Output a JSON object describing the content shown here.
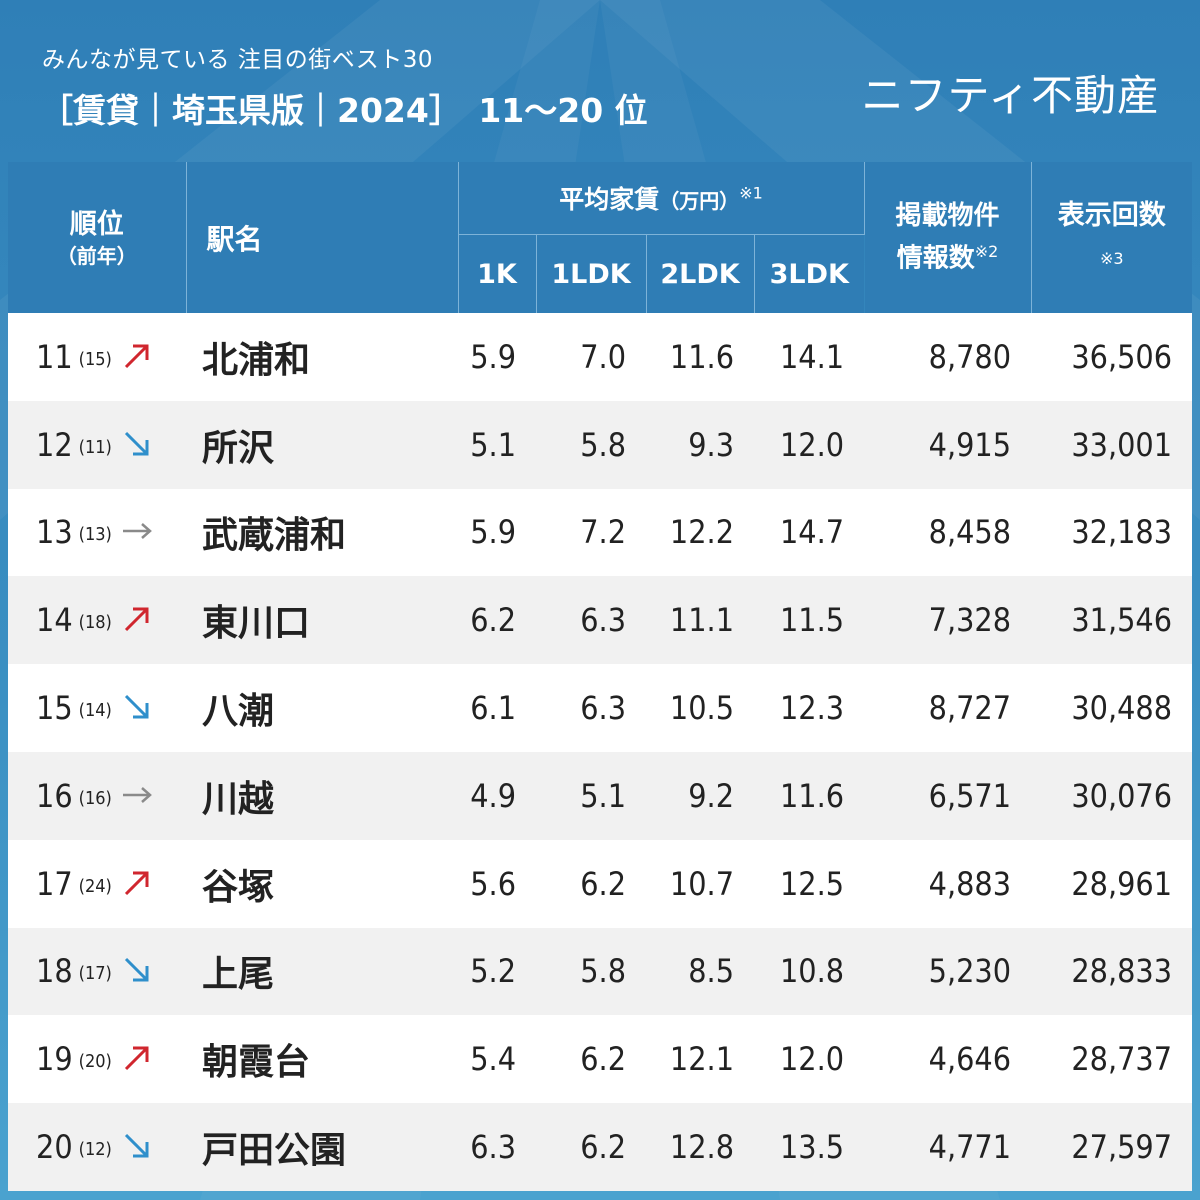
{
  "header": {
    "subtitle": "みんなが見ている 注目の街ベスト30",
    "title": "［賃貸｜埼玉県版｜2024］　11～20 位",
    "brand": "ニフティ不動産"
  },
  "colors": {
    "up": "#d0262e",
    "down": "#2f8fcb",
    "same": "#8a8a8a",
    "header_bg": "#2f7db5"
  },
  "chart_data": {
    "type": "table",
    "columns": {
      "rank": "順位",
      "prev": "（前年）",
      "station": "駅名",
      "rent_group": "平均家賃",
      "rent_unit": "（万円）",
      "rent_note": "※1",
      "k1": "1K",
      "ldk1": "1LDK",
      "ldk2": "2LDK",
      "ldk3": "3LDK",
      "listings_1": "掲載物件",
      "listings_2": "情報数",
      "listings_note": "※2",
      "views": "表示回数",
      "views_note": "※3"
    },
    "rows": [
      {
        "rank": "11",
        "prev": "(15)",
        "trend": "up",
        "station": "北浦和",
        "k1": "5.9",
        "ldk1": "7.0",
        "ldk2": "11.6",
        "ldk3": "14.1",
        "listings": "8,780",
        "views": "36,506"
      },
      {
        "rank": "12",
        "prev": "(11)",
        "trend": "down",
        "station": "所沢",
        "k1": "5.1",
        "ldk1": "5.8",
        "ldk2": "9.3",
        "ldk3": "12.0",
        "listings": "4,915",
        "views": "33,001"
      },
      {
        "rank": "13",
        "prev": "(13)",
        "trend": "same",
        "station": "武蔵浦和",
        "k1": "5.9",
        "ldk1": "7.2",
        "ldk2": "12.2",
        "ldk3": "14.7",
        "listings": "8,458",
        "views": "32,183"
      },
      {
        "rank": "14",
        "prev": "(18)",
        "trend": "up",
        "station": "東川口",
        "k1": "6.2",
        "ldk1": "6.3",
        "ldk2": "11.1",
        "ldk3": "11.5",
        "listings": "7,328",
        "views": "31,546"
      },
      {
        "rank": "15",
        "prev": "(14)",
        "trend": "down",
        "station": "八潮",
        "k1": "6.1",
        "ldk1": "6.3",
        "ldk2": "10.5",
        "ldk3": "12.3",
        "listings": "8,727",
        "views": "30,488"
      },
      {
        "rank": "16",
        "prev": "(16)",
        "trend": "same",
        "station": "川越",
        "k1": "4.9",
        "ldk1": "5.1",
        "ldk2": "9.2",
        "ldk3": "11.6",
        "listings": "6,571",
        "views": "30,076"
      },
      {
        "rank": "17",
        "prev": "(24)",
        "trend": "up",
        "station": "谷塚",
        "k1": "5.6",
        "ldk1": "6.2",
        "ldk2": "10.7",
        "ldk3": "12.5",
        "listings": "4,883",
        "views": "28,961"
      },
      {
        "rank": "18",
        "prev": "(17)",
        "trend": "down",
        "station": "上尾",
        "k1": "5.2",
        "ldk1": "5.8",
        "ldk2": "8.5",
        "ldk3": "10.8",
        "listings": "5,230",
        "views": "28,833"
      },
      {
        "rank": "19",
        "prev": "(20)",
        "trend": "up",
        "station": "朝霞台",
        "k1": "5.4",
        "ldk1": "6.2",
        "ldk2": "12.1",
        "ldk3": "12.0",
        "listings": "4,646",
        "views": "28,737"
      },
      {
        "rank": "20",
        "prev": "(12)",
        "trend": "down",
        "station": "戸田公園",
        "k1": "6.3",
        "ldk1": "6.2",
        "ldk2": "12.8",
        "ldk3": "13.5",
        "listings": "4,771",
        "views": "27,597"
      }
    ]
  }
}
